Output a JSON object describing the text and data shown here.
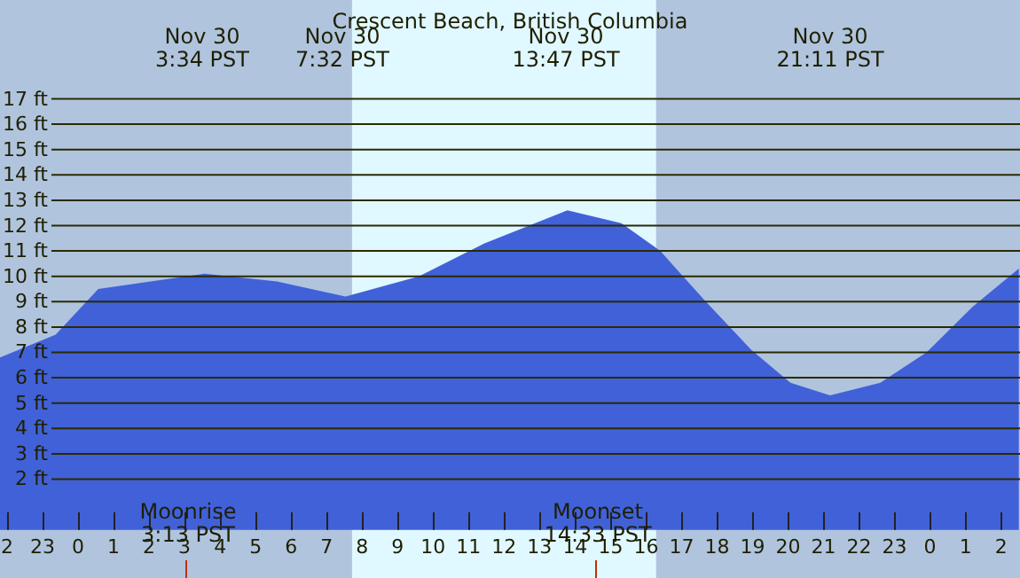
{
  "chart_data": {
    "type": "area",
    "title": "Crescent Beach, British Columbia",
    "x": [
      "--11-29T21:48",
      "--11-29T23:22",
      "--11-30T00:34",
      "--11-30T03:34",
      "--11-30T05:36",
      "--11-30T07:32",
      "--11-30T09:36",
      "--11-30T11:27",
      "--11-30T13:47",
      "--11-30T15:18",
      "--11-30T16:24",
      "--11-30T17:41",
      "--11-30T18:58",
      "--11-30T20:04",
      "--11-30T21:11",
      "--11-30T22:36",
      "--11-30T23:54",
      "--12-01T01:12",
      "--12-01T02:30"
    ],
    "series": [
      {
        "color": "#4161d8",
        "values": [
          6.8,
          7.7,
          9.5,
          10.1,
          9.8,
          9.2,
          10.0,
          11.3,
          12.6,
          12.1,
          11.0,
          9.0,
          7.1,
          5.8,
          5.3,
          5.8,
          7.0,
          8.8,
          10.3
        ]
      }
    ],
    "xlim": [
      "--11-29T21:48",
      "--12-01T02:32"
    ],
    "xticks": [
      {
        "value": "--11-29T22:00",
        "label": "2"
      },
      {
        "value": "--11-29T23:00",
        "label": "23"
      },
      {
        "value": "--11-30T00:00",
        "label": "0"
      },
      {
        "value": "--11-30T01:00",
        "label": "1"
      },
      {
        "value": "--11-30T02:00",
        "label": "2"
      },
      {
        "value": "--11-30T03:00",
        "label": "3"
      },
      {
        "value": "--11-30T04:00",
        "label": "4"
      },
      {
        "value": "--11-30T05:00",
        "label": "5"
      },
      {
        "value": "--11-30T06:00",
        "label": "6"
      },
      {
        "value": "--11-30T07:00",
        "label": "7"
      },
      {
        "value": "--11-30T08:00",
        "label": "8"
      },
      {
        "value": "--11-30T09:00",
        "label": "9"
      },
      {
        "value": "--11-30T10:00",
        "label": "10"
      },
      {
        "value": "--11-30T11:00",
        "label": "11"
      },
      {
        "value": "--11-30T12:00",
        "label": "12"
      },
      {
        "value": "--11-30T13:00",
        "label": "13"
      },
      {
        "value": "--11-30T14:00",
        "label": "14"
      },
      {
        "value": "--11-30T15:00",
        "label": "15"
      },
      {
        "value": "--11-30T16:00",
        "label": "16"
      },
      {
        "value": "--11-30T17:00",
        "label": "17"
      },
      {
        "value": "--11-30T18:00",
        "label": "18"
      },
      {
        "value": "--11-30T19:00",
        "label": "19"
      },
      {
        "value": "--11-30T20:00",
        "label": "20"
      },
      {
        "value": "--11-30T21:00",
        "label": "21"
      },
      {
        "value": "--11-30T22:00",
        "label": "22"
      },
      {
        "value": "--11-30T23:00",
        "label": "23"
      },
      {
        "value": "--12-01T00:00",
        "label": "0"
      },
      {
        "value": "--12-01T01:00",
        "label": "1"
      },
      {
        "value": "--12-01T02:00",
        "label": "2"
      }
    ],
    "ylim": [
      -1.9,
      20.9
    ],
    "yticks": [
      {
        "value": 2,
        "label": "2 ft"
      },
      {
        "value": 3,
        "label": "3 ft"
      },
      {
        "value": 4,
        "label": "4 ft"
      },
      {
        "value": 5,
        "label": "5 ft"
      },
      {
        "value": 6,
        "label": "6 ft"
      },
      {
        "value": 7,
        "label": "7 ft"
      },
      {
        "value": 8,
        "label": "8 ft"
      },
      {
        "value": 9,
        "label": "9 ft"
      },
      {
        "value": 10,
        "label": "10 ft"
      },
      {
        "value": 11,
        "label": "11 ft"
      },
      {
        "value": 12,
        "label": "12 ft"
      },
      {
        "value": 13,
        "label": "13 ft"
      },
      {
        "value": 14,
        "label": "14 ft"
      },
      {
        "value": 15,
        "label": "15 ft"
      },
      {
        "value": 16,
        "label": "16 ft"
      },
      {
        "value": 17,
        "label": "17 ft"
      }
    ],
    "grid": "y",
    "bands": [
      {
        "axis": "x",
        "from": "--11-30T07:43",
        "to": "--11-30T16:17",
        "color": "#e0f8ff"
      }
    ],
    "annotations": [
      "Nov 30\n3:34 PST",
      "Nov 30\n7:32 PST",
      "Nov 30\n13:47 PST",
      "Nov 30\n21:11 PST",
      "Moonrise\n3:13 PST",
      "Moonset\n14:33 PST"
    ]
  }
}
